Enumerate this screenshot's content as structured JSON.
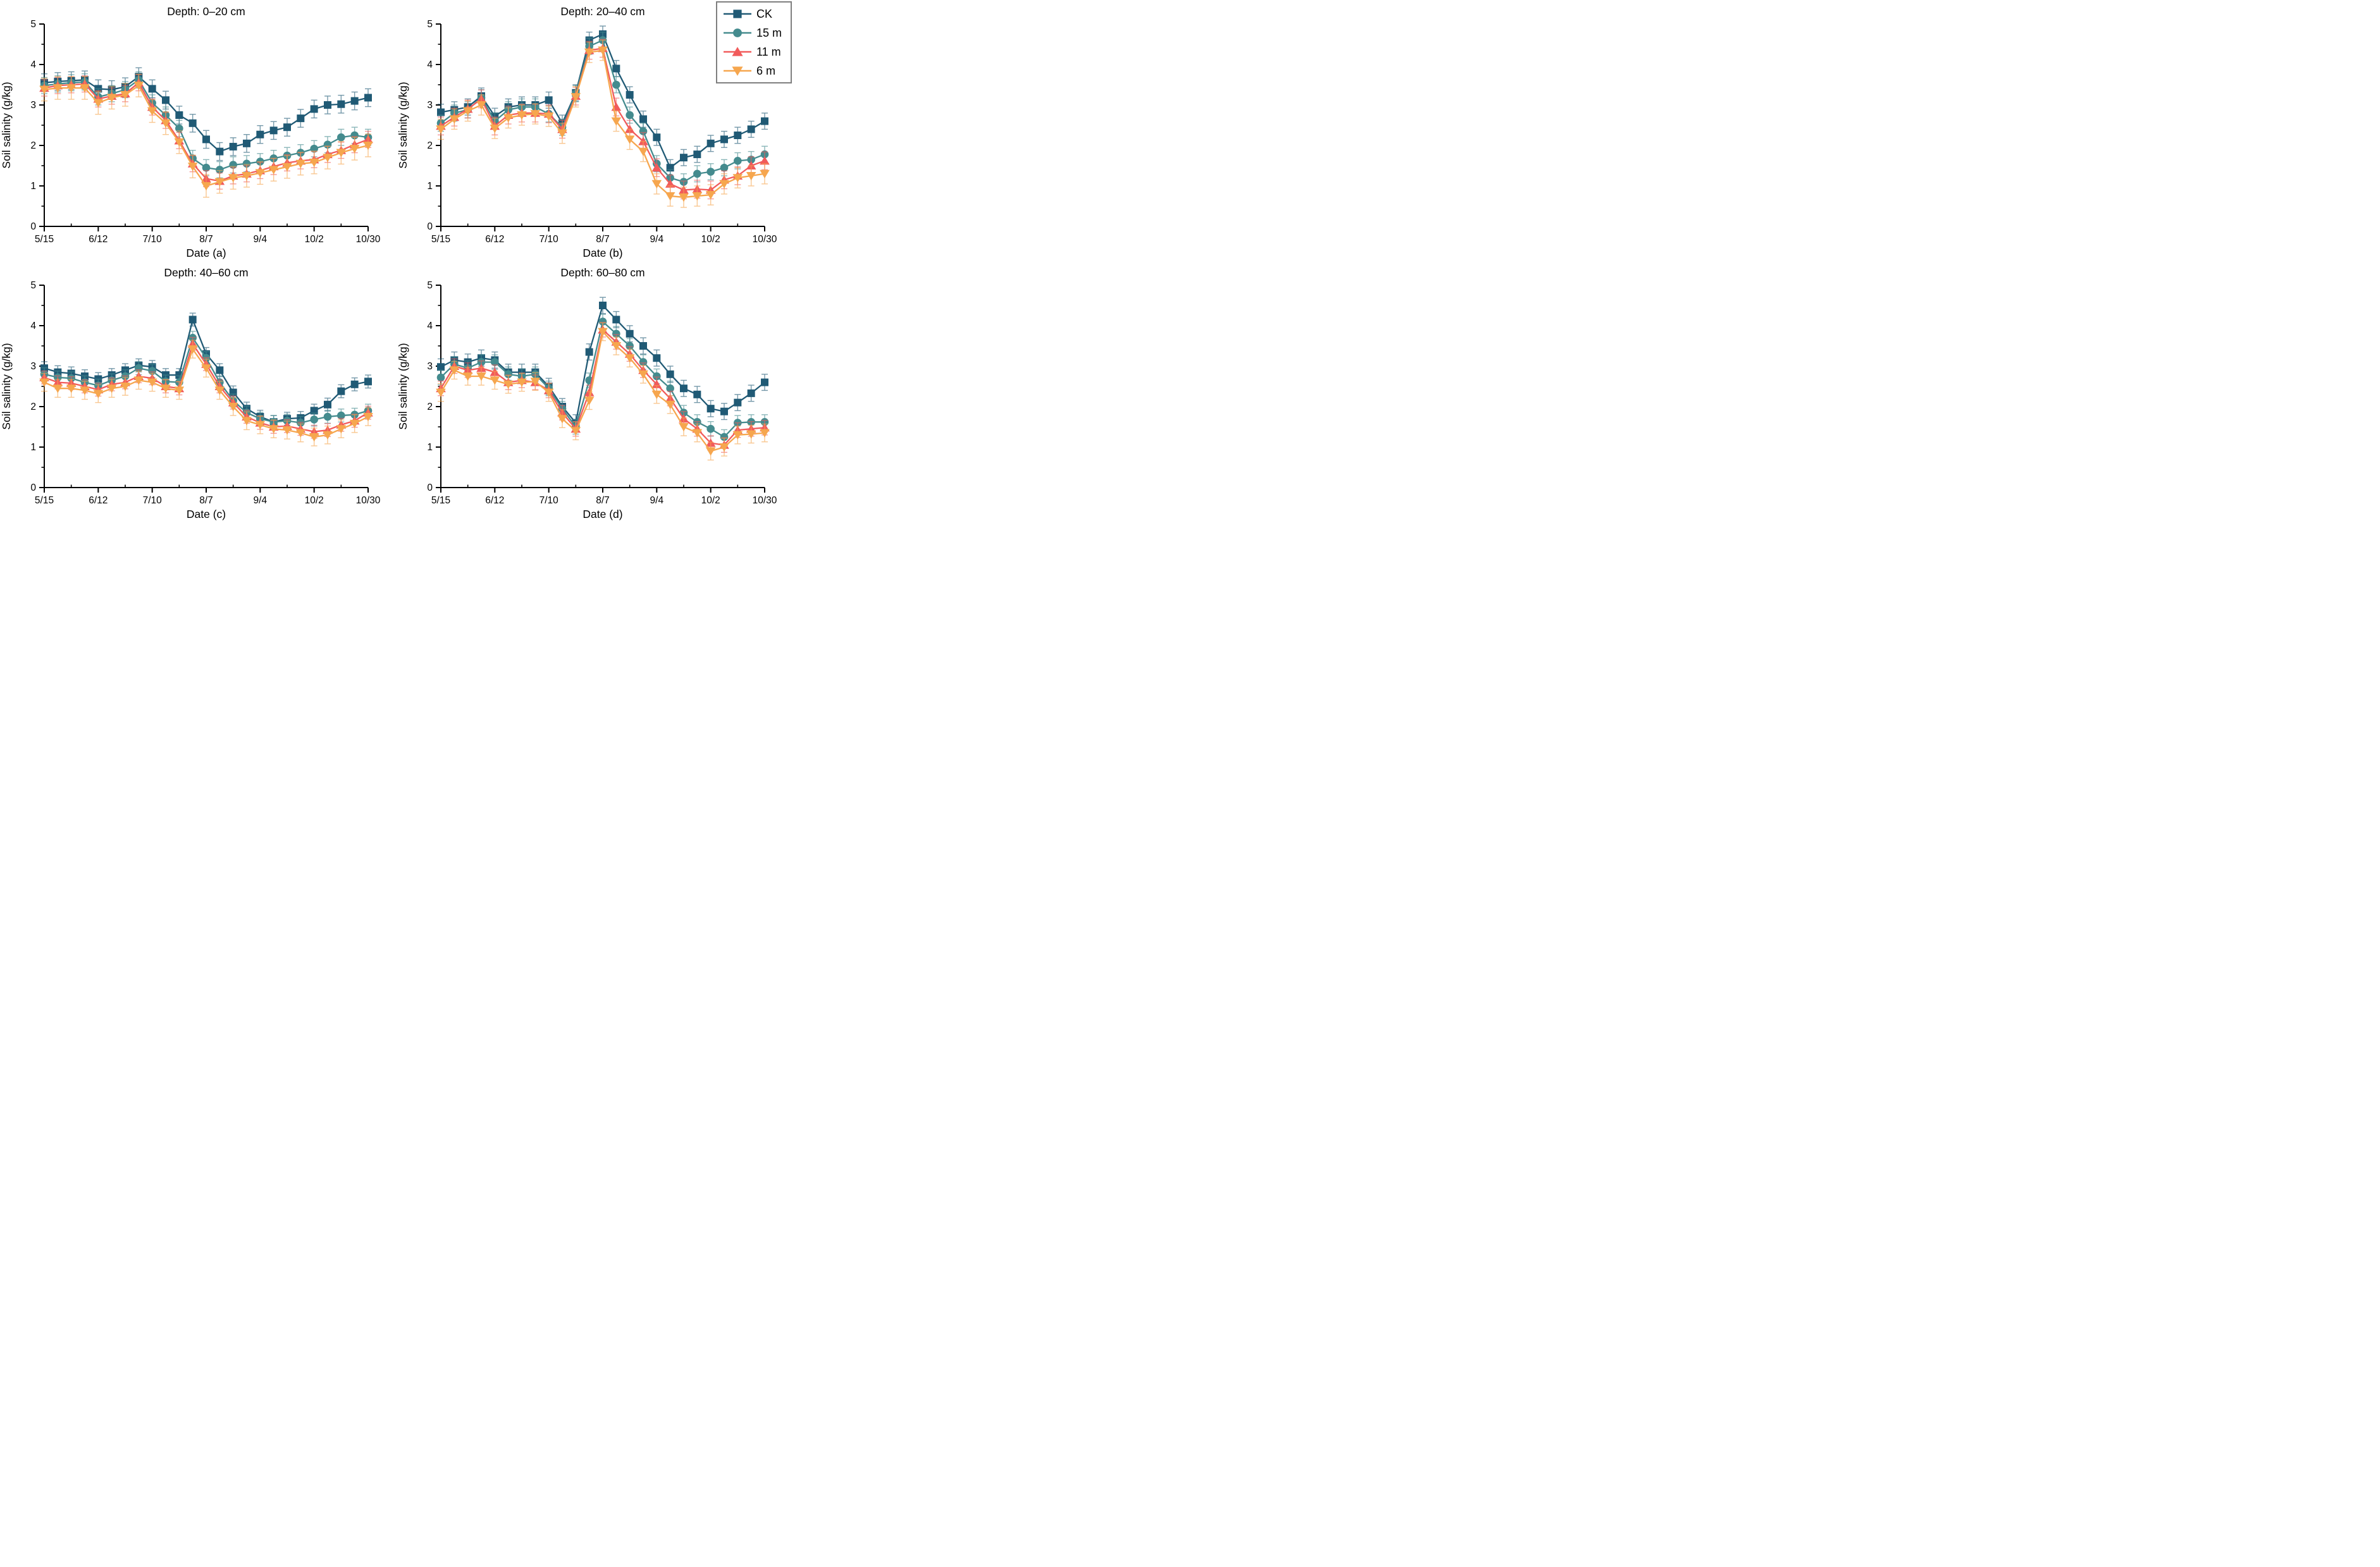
{
  "figure": {
    "background": "#ffffff",
    "axis_color": "#000000",
    "ylabel": "Soil salinity (g/kg)",
    "ylim": [
      0,
      5
    ],
    "yticks": [
      0,
      1,
      2,
      3,
      4,
      5
    ],
    "x_major_tick_labels": [
      "5/15",
      "6/12",
      "7/10",
      "8/7",
      "9/4",
      "10/2",
      "10/30"
    ]
  },
  "legend": {
    "position": "top-right",
    "border_color": "#7f7f7f",
    "entries": [
      {
        "label": "CK",
        "marker": "square",
        "color": "#205A75"
      },
      {
        "label": "15 m",
        "marker": "circle",
        "color": "#448B8E"
      },
      {
        "label": "11 m",
        "marker": "triangle-up",
        "color": "#F15B5B"
      },
      {
        "label": "6 m",
        "marker": "triangle-down",
        "color": "#F6A64E"
      }
    ]
  },
  "chart_data": [
    {
      "id": "a",
      "type": "line",
      "title": "Depth: 0–20 cm",
      "xlabel": "Date (a)",
      "ylabel": "Soil salinity (g/kg)",
      "ylim": [
        0,
        5
      ],
      "yticks": [
        0,
        1,
        2,
        3,
        4,
        5
      ],
      "grid": false,
      "error_bars": true,
      "x_major_tick_labels": [
        "5/15",
        "6/12",
        "7/10",
        "8/7",
        "9/4",
        "10/2",
        "10/30"
      ],
      "x": [
        "5/15",
        "5/22",
        "5/29",
        "6/5",
        "6/12",
        "6/19",
        "6/26",
        "7/3",
        "7/10",
        "7/17",
        "7/24",
        "7/31",
        "8/7",
        "8/14",
        "8/21",
        "8/28",
        "9/4",
        "9/11",
        "9/18",
        "9/25",
        "10/2",
        "10/9",
        "10/16",
        "10/23",
        "10/30"
      ],
      "series": [
        {
          "name": "CK",
          "marker": "square",
          "color": "#205A75",
          "err": 0.22,
          "values": [
            3.55,
            3.58,
            3.6,
            3.62,
            3.4,
            3.38,
            3.45,
            3.7,
            3.4,
            3.12,
            2.75,
            2.55,
            2.15,
            1.85,
            1.97,
            2.05,
            2.27,
            2.37,
            2.45,
            2.67,
            2.9,
            3.0,
            3.02,
            3.1,
            3.18
          ]
        },
        {
          "name": "15 m",
          "marker": "circle",
          "color": "#448B8E",
          "err": 0.2,
          "values": [
            3.48,
            3.52,
            3.55,
            3.57,
            3.2,
            3.28,
            3.38,
            3.62,
            3.05,
            2.75,
            2.42,
            1.68,
            1.45,
            1.4,
            1.52,
            1.55,
            1.6,
            1.68,
            1.75,
            1.82,
            1.92,
            2.02,
            2.2,
            2.25,
            2.2
          ]
        },
        {
          "name": "11 m",
          "marker": "triangle-up",
          "color": "#F15B5B",
          "err": 0.2,
          "values": [
            3.42,
            3.48,
            3.5,
            3.52,
            3.15,
            3.22,
            3.28,
            3.55,
            2.95,
            2.62,
            2.12,
            1.55,
            1.18,
            1.12,
            1.25,
            1.3,
            1.38,
            1.48,
            1.57,
            1.62,
            1.65,
            1.78,
            1.88,
            2.02,
            2.15
          ]
        },
        {
          "name": "6 m",
          "marker": "triangle-down",
          "color": "#F6A64E",
          "err": 0.28,
          "values": [
            3.38,
            3.42,
            3.42,
            3.42,
            3.05,
            3.18,
            3.25,
            3.48,
            2.85,
            2.55,
            2.08,
            1.48,
            1.0,
            1.1,
            1.2,
            1.25,
            1.32,
            1.4,
            1.47,
            1.55,
            1.58,
            1.7,
            1.82,
            1.92,
            2.0
          ]
        }
      ]
    },
    {
      "id": "b",
      "type": "line",
      "title": "Depth: 20–40 cm",
      "xlabel": "Date (b)",
      "ylabel": "Soil salinity (g/kg)",
      "ylim": [
        0,
        5
      ],
      "yticks": [
        0,
        1,
        2,
        3,
        4,
        5
      ],
      "grid": false,
      "error_bars": true,
      "x_major_tick_labels": [
        "5/15",
        "6/12",
        "7/10",
        "8/7",
        "9/4",
        "10/2",
        "10/30"
      ],
      "x": [
        "5/15",
        "5/22",
        "5/29",
        "6/5",
        "6/12",
        "6/19",
        "6/26",
        "7/3",
        "7/10",
        "7/17",
        "7/24",
        "7/31",
        "8/7",
        "8/14",
        "8/21",
        "8/28",
        "9/4",
        "9/11",
        "9/18",
        "9/25",
        "10/2",
        "10/9",
        "10/16",
        "10/23",
        "10/30"
      ],
      "series": [
        {
          "name": "CK",
          "marker": "square",
          "color": "#205A75",
          "err": 0.2,
          "values": [
            2.82,
            2.88,
            2.95,
            3.22,
            2.72,
            2.95,
            3.0,
            3.0,
            3.12,
            2.55,
            3.3,
            4.6,
            4.75,
            3.9,
            3.25,
            2.65,
            2.2,
            1.45,
            1.7,
            1.78,
            2.05,
            2.15,
            2.25,
            2.4,
            2.6
          ]
        },
        {
          "name": "15 m",
          "marker": "circle",
          "color": "#448B8E",
          "err": 0.2,
          "values": [
            2.55,
            2.8,
            2.88,
            3.18,
            2.6,
            2.88,
            2.95,
            2.95,
            2.78,
            2.45,
            3.28,
            4.45,
            4.6,
            3.5,
            2.75,
            2.35,
            1.55,
            1.2,
            1.1,
            1.3,
            1.35,
            1.45,
            1.62,
            1.65,
            1.78
          ]
        },
        {
          "name": "11 m",
          "marker": "triangle-up",
          "color": "#F15B5B",
          "err": 0.22,
          "values": [
            2.48,
            2.7,
            2.9,
            3.15,
            2.48,
            2.75,
            2.8,
            2.8,
            2.78,
            2.4,
            3.22,
            4.35,
            4.4,
            2.95,
            2.4,
            2.1,
            1.45,
            1.05,
            0.9,
            0.92,
            0.9,
            1.15,
            1.25,
            1.5,
            1.62
          ]
        },
        {
          "name": "6 m",
          "marker": "triangle-down",
          "color": "#F6A64E",
          "err": 0.25,
          "values": [
            2.4,
            2.65,
            2.85,
            3.0,
            2.42,
            2.68,
            2.75,
            2.78,
            2.72,
            2.3,
            3.2,
            4.3,
            4.35,
            2.6,
            2.15,
            1.85,
            1.05,
            0.75,
            0.72,
            0.75,
            0.78,
            1.05,
            1.2,
            1.25,
            1.3
          ]
        }
      ]
    },
    {
      "id": "c",
      "type": "line",
      "title": "Depth: 40–60 cm",
      "xlabel": "Date (c)",
      "ylabel": "Soil salinity (g/kg)",
      "ylim": [
        0,
        5
      ],
      "yticks": [
        0,
        1,
        2,
        3,
        4,
        5
      ],
      "grid": false,
      "error_bars": true,
      "x_major_tick_labels": [
        "5/15",
        "6/12",
        "7/10",
        "8/7",
        "9/4",
        "10/2",
        "10/30"
      ],
      "x": [
        "5/15",
        "5/22",
        "5/29",
        "6/5",
        "6/12",
        "6/19",
        "6/26",
        "7/3",
        "7/10",
        "7/17",
        "7/24",
        "7/31",
        "8/7",
        "8/14",
        "8/21",
        "8/28",
        "9/4",
        "9/11",
        "9/18",
        "9/25",
        "10/2",
        "10/9",
        "10/16",
        "10/23",
        "10/30"
      ],
      "series": [
        {
          "name": "CK",
          "marker": "square",
          "color": "#205A75",
          "err": 0.16,
          "values": [
            2.95,
            2.85,
            2.82,
            2.75,
            2.68,
            2.78,
            2.9,
            3.02,
            2.98,
            2.78,
            2.78,
            4.15,
            3.3,
            2.9,
            2.35,
            1.95,
            1.75,
            1.62,
            1.7,
            1.72,
            1.9,
            2.05,
            2.38,
            2.55,
            2.62
          ]
        },
        {
          "name": "15 m",
          "marker": "circle",
          "color": "#448B8E",
          "err": 0.16,
          "values": [
            2.8,
            2.72,
            2.7,
            2.6,
            2.52,
            2.65,
            2.75,
            2.95,
            2.88,
            2.62,
            2.6,
            3.7,
            3.2,
            2.6,
            2.15,
            1.85,
            1.7,
            1.62,
            1.65,
            1.6,
            1.68,
            1.75,
            1.78,
            1.8,
            1.9
          ]
        },
        {
          "name": "11 m",
          "marker": "triangle-up",
          "color": "#F15B5B",
          "err": 0.16,
          "values": [
            2.72,
            2.6,
            2.58,
            2.5,
            2.42,
            2.55,
            2.6,
            2.75,
            2.7,
            2.5,
            2.45,
            3.55,
            3.05,
            2.5,
            2.1,
            1.75,
            1.6,
            1.5,
            1.52,
            1.45,
            1.38,
            1.42,
            1.55,
            1.65,
            1.85
          ]
        },
        {
          "name": "6 m",
          "marker": "triangle-down",
          "color": "#F6A64E",
          "err": 0.22,
          "values": [
            2.6,
            2.45,
            2.45,
            2.4,
            2.32,
            2.45,
            2.5,
            2.65,
            2.6,
            2.45,
            2.4,
            3.42,
            2.95,
            2.4,
            2.0,
            1.65,
            1.55,
            1.45,
            1.42,
            1.35,
            1.25,
            1.3,
            1.45,
            1.58,
            1.75
          ]
        }
      ]
    },
    {
      "id": "d",
      "type": "line",
      "title": "Depth: 60–80 cm",
      "xlabel": "Date (d)",
      "ylabel": "Soil salinity (g/kg)",
      "ylim": [
        0,
        5
      ],
      "yticks": [
        0,
        1,
        2,
        3,
        4,
        5
      ],
      "grid": false,
      "error_bars": true,
      "x_major_tick_labels": [
        "5/15",
        "6/12",
        "7/10",
        "8/7",
        "9/4",
        "10/2",
        "10/30"
      ],
      "x": [
        "5/15",
        "5/22",
        "5/29",
        "6/5",
        "6/12",
        "6/19",
        "6/26",
        "7/3",
        "7/10",
        "7/17",
        "7/24",
        "7/31",
        "8/7",
        "8/14",
        "8/21",
        "8/28",
        "9/4",
        "9/11",
        "9/18",
        "9/25",
        "10/2",
        "10/9",
        "10/16",
        "10/23",
        "10/30"
      ],
      "series": [
        {
          "name": "CK",
          "marker": "square",
          "color": "#205A75",
          "err": 0.2,
          "values": [
            2.98,
            3.15,
            3.1,
            3.2,
            3.15,
            2.85,
            2.85,
            2.85,
            2.5,
            2.0,
            1.6,
            3.35,
            4.5,
            4.15,
            3.8,
            3.5,
            3.2,
            2.8,
            2.45,
            2.3,
            1.95,
            1.88,
            2.1,
            2.33,
            2.6
          ]
        },
        {
          "name": "15 m",
          "marker": "circle",
          "color": "#448B8E",
          "err": 0.18,
          "values": [
            2.72,
            3.05,
            2.95,
            3.1,
            3.1,
            2.8,
            2.75,
            2.8,
            2.45,
            1.95,
            1.5,
            2.65,
            4.1,
            3.8,
            3.5,
            3.1,
            2.75,
            2.45,
            1.85,
            1.62,
            1.45,
            1.25,
            1.6,
            1.62,
            1.62
          ]
        },
        {
          "name": "11 m",
          "marker": "triangle-up",
          "color": "#F15B5B",
          "err": 0.18,
          "values": [
            2.45,
            3.0,
            2.9,
            2.95,
            2.85,
            2.6,
            2.65,
            2.6,
            2.4,
            1.85,
            1.45,
            2.35,
            3.9,
            3.6,
            3.3,
            2.9,
            2.55,
            2.2,
            1.7,
            1.45,
            1.1,
            1.05,
            1.42,
            1.45,
            1.48
          ]
        },
        {
          "name": "6 m",
          "marker": "triangle-down",
          "color": "#F6A64E",
          "err": 0.22,
          "values": [
            2.35,
            2.9,
            2.75,
            2.75,
            2.65,
            2.55,
            2.6,
            2.62,
            2.35,
            1.7,
            1.4,
            2.15,
            3.85,
            3.5,
            3.2,
            2.8,
            2.3,
            2.05,
            1.5,
            1.35,
            0.9,
            1.0,
            1.3,
            1.32,
            1.35
          ]
        }
      ]
    }
  ]
}
